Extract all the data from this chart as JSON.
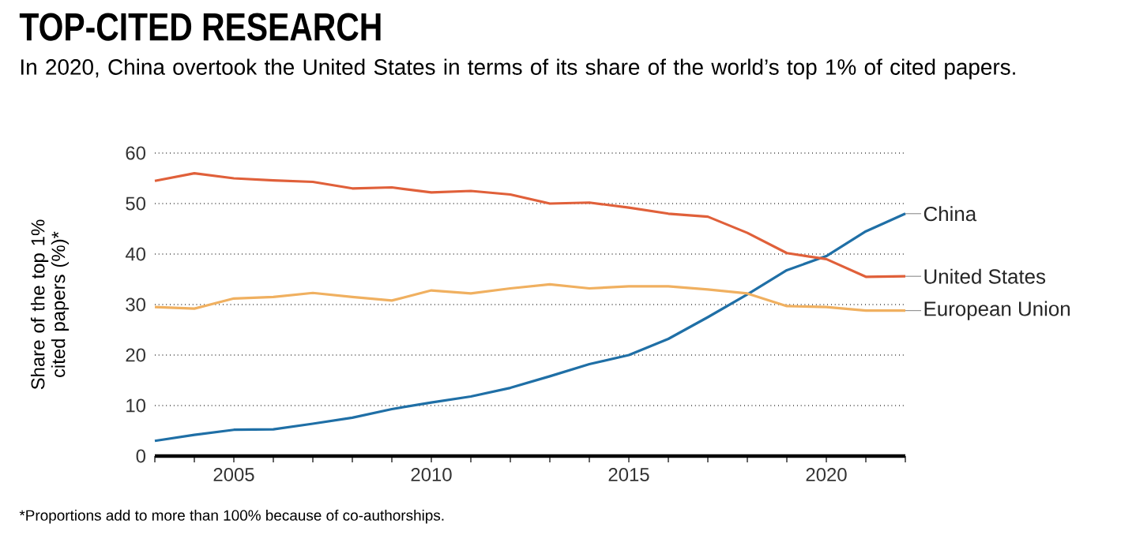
{
  "chart_data": {
    "type": "line",
    "title": "TOP-CITED RESEARCH",
    "subtitle": "In 2020, China overtook the United States in terms of its share of the world’s top 1% of cited papers.",
    "ylabel": "Share of the top 1% cited papers (%)*",
    "annotations": [
      "*Proportions add to more than 100% because of co-authorships."
    ],
    "x": [
      2003,
      2004,
      2005,
      2006,
      2007,
      2008,
      2009,
      2010,
      2011,
      2012,
      2013,
      2014,
      2015,
      2016,
      2017,
      2018,
      2019,
      2020,
      2021,
      2022
    ],
    "series": [
      {
        "name": "China",
        "color": "#1f6fa6",
        "values": [
          3,
          4.2,
          5.2,
          5.3,
          6.4,
          7.6,
          9.3,
          10.6,
          11.8,
          13.5,
          15.8,
          18.2,
          20,
          23.2,
          27.5,
          32,
          36.8,
          39.6,
          44.5,
          48
        ]
      },
      {
        "name": "United States",
        "color": "#e0603a",
        "values": [
          54.5,
          56,
          55,
          54.6,
          54.3,
          53,
          53.2,
          52.2,
          52.5,
          51.8,
          50,
          50.2,
          49.2,
          48,
          47.4,
          44.2,
          40.2,
          39,
          35.5,
          35.6
        ]
      },
      {
        "name": "European Union",
        "color": "#f0b060",
        "values": [
          29.5,
          29.2,
          31.2,
          31.5,
          32.3,
          31.5,
          30.8,
          32.8,
          32.2,
          33.2,
          34,
          33.2,
          33.6,
          33.6,
          33,
          32.2,
          29.7,
          29.5,
          28.8,
          28.8
        ]
      }
    ],
    "xlim": [
      2003,
      2022
    ],
    "xticks": [
      {
        "value": 2003,
        "label": null
      },
      {
        "value": 2004,
        "label": null
      },
      2005,
      {
        "value": 2006,
        "label": null
      },
      {
        "value": 2007,
        "label": null
      },
      {
        "value": 2008,
        "label": null
      },
      {
        "value": 2009,
        "label": null
      },
      2010,
      {
        "value": 2011,
        "label": null
      },
      {
        "value": 2012,
        "label": null
      },
      {
        "value": 2013,
        "label": null
      },
      {
        "value": 2014,
        "label": null
      },
      2015,
      {
        "value": 2016,
        "label": null
      },
      {
        "value": 2017,
        "label": null
      },
      {
        "value": 2018,
        "label": null
      },
      {
        "value": 2019,
        "label": null
      },
      2020,
      {
        "value": 2021,
        "label": null
      },
      {
        "value": 2022,
        "label": null
      }
    ],
    "ylim": [
      0,
      60
    ],
    "yticks": [
      0,
      10,
      20,
      30,
      40,
      50,
      60
    ],
    "grid": "y",
    "legend": false,
    "marker": "none",
    "line_style": "solid"
  }
}
